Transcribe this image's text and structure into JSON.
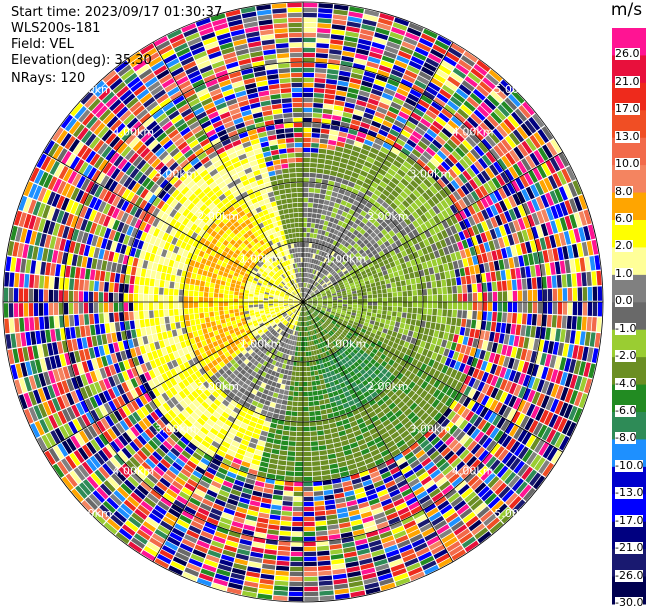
{
  "header": {
    "start_time": "Start time: 2023/09/17 01:30:37",
    "instrument": "WLS200s-181",
    "field": "Field: VEL",
    "elevation": "Elevation(deg): 35.30",
    "nrays": "NRays: 120"
  },
  "chart_data": {
    "type": "heatmap",
    "subtype": "radar-ppi",
    "units": "m/s",
    "colorbar": {
      "title": "m/s",
      "levels": [
        "26.0",
        "21.0",
        "17.0",
        "13.0",
        "10.0",
        "8.0",
        "6.0",
        "2.0",
        "1.0",
        "0.0",
        "-1.0",
        "-2.0",
        "-4.0",
        "-6.0",
        "-8.0",
        "-10.0",
        "-13.0",
        "-17.0",
        "-21.0",
        "-26.0",
        "-30.0"
      ],
      "colors": [
        "#ff1493",
        "#e8103c",
        "#ee2a1c",
        "#f04e24",
        "#f26a4a",
        "#f48460",
        "#ffa500",
        "#ffff00",
        "#ffff99",
        "#808080",
        "#696969",
        "#9acd32",
        "#6b8e23",
        "#228b22",
        "#2e8b57",
        "#1e90ff",
        "#0000cd",
        "#0000ff",
        "#000080",
        "#191970",
        "#000050"
      ]
    },
    "range_rings": [
      {
        "label": "1.00km",
        "range_km": 1
      },
      {
        "label": "2.00km",
        "range_km": 2
      },
      {
        "label": "3.00km",
        "range_km": 3
      },
      {
        "label": "4.00km",
        "range_km": 4
      },
      {
        "label": "5.00km",
        "range_km": 5
      }
    ],
    "max_range_km": 5,
    "range_gates": 60,
    "nrays": 120,
    "spoke_angles_deg": [
      0,
      30,
      60,
      90,
      120,
      150,
      180,
      210,
      240,
      270,
      300,
      330
    ],
    "ring_label_azimuths_deg": [
      45,
      135,
      225,
      315
    ],
    "velocity_sectors": [
      {
        "az_start": 195,
        "az_end": 345,
        "range_km": [
          0,
          2.8
        ],
        "mean": 2.0
      },
      {
        "az_start": 210,
        "az_end": 330,
        "range_km": [
          1.0,
          2.0
        ],
        "mean": 6.0
      },
      {
        "az_start": 345,
        "az_end": 75,
        "range_km": [
          0,
          1.0
        ],
        "mean": 0.0
      },
      {
        "az_start": 0,
        "az_end": 60,
        "range_km": [
          1.0,
          2.2
        ],
        "mean": -0.5
      },
      {
        "az_start": 60,
        "az_end": 115,
        "range_km": [
          0,
          2.6
        ],
        "mean": -2.0
      },
      {
        "az_start": 115,
        "az_end": 195,
        "range_km": [
          0,
          3.0
        ],
        "mean": -3.5
      },
      {
        "az_start": 130,
        "az_end": 165,
        "range_km": [
          1.0,
          2.0
        ],
        "mean": -6.0
      },
      {
        "az_start": 190,
        "az_end": 230,
        "range_km": [
          0.5,
          2.0
        ],
        "mean": 0.0
      }
    ]
  }
}
